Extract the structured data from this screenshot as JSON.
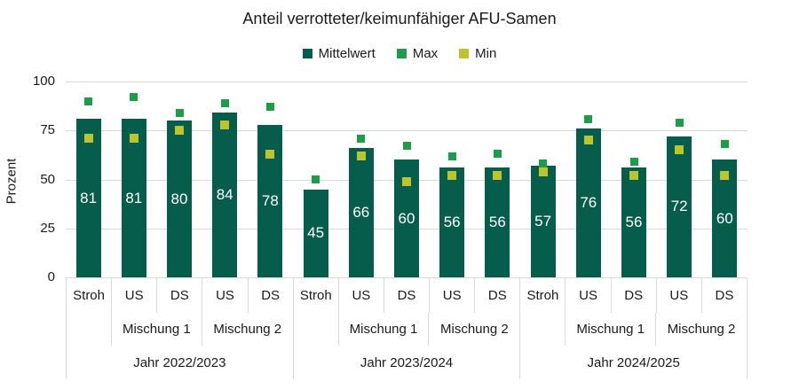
{
  "title": "Anteil verrotteter/keimunfähiger AFU-Samen",
  "colors": {
    "mean": "#075d4b",
    "max": "#1f9c49",
    "min": "#bdc52c",
    "grid": "#d9d9d9",
    "text": "#1a1a1a",
    "bar_label": "#ffffff"
  },
  "chart_data": {
    "type": "bar",
    "title": "Anteil verrotteter/keimunfähiger AFU-Samen",
    "xlabel": "",
    "ylabel": "Prozent",
    "ylim": [
      0,
      100
    ],
    "yticks": [
      0,
      25,
      50,
      75,
      100
    ],
    "grid": true,
    "legend_position": "top",
    "legend": [
      {
        "label": "Mittelwert",
        "role": "mean"
      },
      {
        "label": "Max",
        "role": "max"
      },
      {
        "label": "Min",
        "role": "min"
      }
    ],
    "groups": [
      {
        "label": "Jahr 2022/2023",
        "subgroups": [
          "",
          "Mischung 1",
          "Mischung 2"
        ],
        "bars": [
          {
            "category": "Stroh",
            "subgroup": "",
            "mean": 81,
            "max": 90,
            "min": 71
          },
          {
            "category": "US",
            "subgroup": "Mischung 1",
            "mean": 81,
            "max": 92,
            "min": 71
          },
          {
            "category": "DS",
            "subgroup": "Mischung 1",
            "mean": 80,
            "max": 84,
            "min": 75
          },
          {
            "category": "US",
            "subgroup": "Mischung 2",
            "mean": 84,
            "max": 89,
            "min": 78
          },
          {
            "category": "DS",
            "subgroup": "Mischung 2",
            "mean": 78,
            "max": 87,
            "min": 63
          }
        ]
      },
      {
        "label": "Jahr 2023/2024",
        "subgroups": [
          "",
          "Mischung 1",
          "Mischung 2"
        ],
        "bars": [
          {
            "category": "Stroh",
            "subgroup": "",
            "mean": 45,
            "max": 50,
            "min": null
          },
          {
            "category": "US",
            "subgroup": "Mischung 1",
            "mean": 66,
            "max": 71,
            "min": 62
          },
          {
            "category": "DS",
            "subgroup": "Mischung 1",
            "mean": 60,
            "max": 67,
            "min": 49
          },
          {
            "category": "US",
            "subgroup": "Mischung 2",
            "mean": 56,
            "max": 62,
            "min": 52
          },
          {
            "category": "DS",
            "subgroup": "Mischung 2",
            "mean": 56,
            "max": 63,
            "min": 52
          }
        ]
      },
      {
        "label": "Jahr 2024/2025",
        "subgroups": [
          "",
          "Mischung 1",
          "Mischung 2"
        ],
        "bars": [
          {
            "category": "Stroh",
            "subgroup": "",
            "mean": 57,
            "max": 58,
            "min": 54
          },
          {
            "category": "US",
            "subgroup": "Mischung 1",
            "mean": 76,
            "max": 81,
            "min": 70
          },
          {
            "category": "DS",
            "subgroup": "Mischung 1",
            "mean": 56,
            "max": 59,
            "min": 52
          },
          {
            "category": "US",
            "subgroup": "Mischung 2",
            "mean": 72,
            "max": 79,
            "min": 65
          },
          {
            "category": "DS",
            "subgroup": "Mischung 2",
            "mean": 60,
            "max": 68,
            "min": 52
          }
        ]
      }
    ]
  }
}
